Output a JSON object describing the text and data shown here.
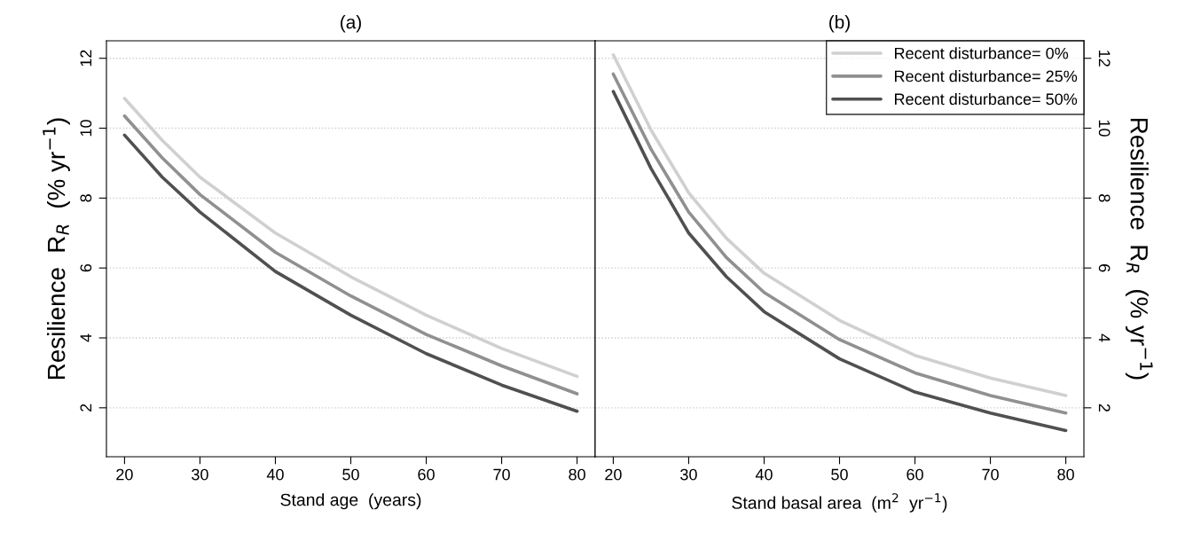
{
  "chart_data": [
    {
      "type": "line",
      "title": "(a)",
      "xlabel": "Stand age  (years)",
      "ylabel": "Resilience  R$_{R}$  (% yr$^{−1}$)",
      "x": [
        20,
        25,
        30,
        40,
        50,
        60,
        70,
        80
      ],
      "xlim": [
        17.6,
        82.4
      ],
      "xticks": [
        20,
        30,
        40,
        50,
        60,
        70,
        80
      ],
      "ylim": [
        0.6,
        12.5
      ],
      "yticks": [
        2,
        4,
        6,
        8,
        10,
        12
      ],
      "grid": "y",
      "legend": false,
      "series": [
        {
          "color": "#d0d0d0",
          "values": [
            10.85,
            9.65,
            8.6,
            7.0,
            5.75,
            4.65,
            3.7,
            2.9
          ]
        },
        {
          "color": "#909090",
          "values": [
            10.35,
            9.15,
            8.1,
            6.45,
            5.2,
            4.1,
            3.2,
            2.4
          ]
        },
        {
          "color": "#505050",
          "values": [
            9.8,
            8.6,
            7.6,
            5.9,
            4.65,
            3.55,
            2.65,
            1.9
          ]
        }
      ]
    },
    {
      "type": "line",
      "title": "(b)",
      "xlabel": "Stand basal area  (m$^{2}$  yr$^{−1}$)",
      "y2label": "Resilience  R$_{R}$  (% yr$^{−1}$)",
      "x": [
        20,
        25,
        30,
        35,
        40,
        50,
        60,
        70,
        80
      ],
      "xlim": [
        17.6,
        82.4
      ],
      "xticks": [
        20,
        30,
        40,
        50,
        60,
        70,
        80
      ],
      "y2lim": [
        0.6,
        12.5
      ],
      "y2ticks": [
        2,
        4,
        6,
        8,
        10,
        12
      ],
      "grid": "y",
      "legend": "top right",
      "series": [
        {
          "name": "Recent disturbance= 0%",
          "color": "#d0d0d0",
          "axis": "y2",
          "values": [
            12.1,
            9.95,
            8.15,
            6.85,
            5.85,
            4.5,
            3.5,
            2.85,
            2.35
          ]
        },
        {
          "name": "Recent disturbance= 25%",
          "color": "#909090",
          "axis": "y2",
          "values": [
            11.55,
            9.4,
            7.6,
            6.3,
            5.3,
            3.95,
            3.0,
            2.35,
            1.85
          ]
        },
        {
          "name": "Recent disturbance= 50%",
          "color": "#505050",
          "axis": "y2",
          "values": [
            11.05,
            8.85,
            7.0,
            5.75,
            4.75,
            3.4,
            2.45,
            1.85,
            1.35
          ]
        }
      ]
    }
  ]
}
